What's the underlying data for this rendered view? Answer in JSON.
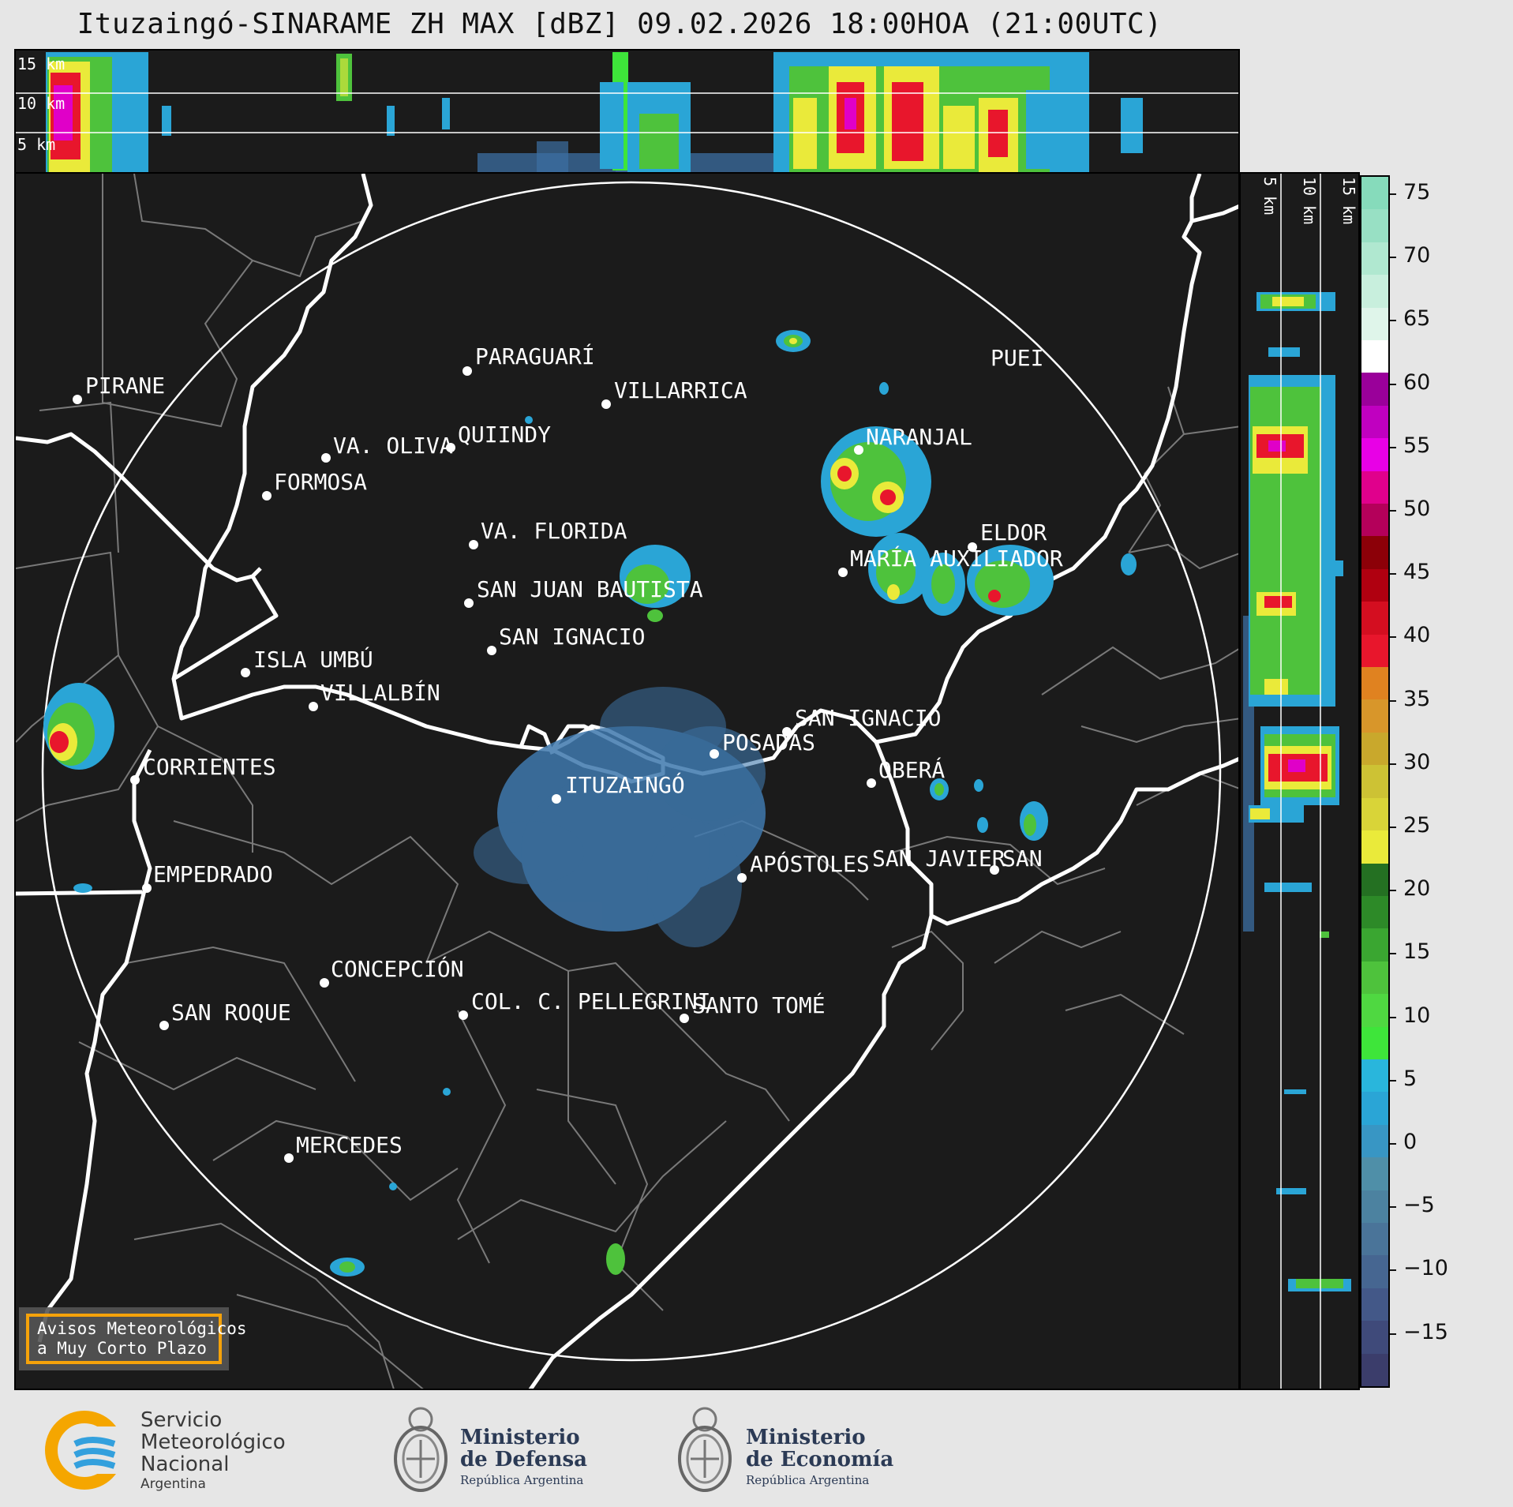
{
  "title": "Ituzaingó-SINARAME ZH MAX [dBZ] 09.02.2026 18:00HOA (21:00UTC)",
  "height_labels": [
    "15 km",
    "10 km",
    "5 km"
  ],
  "cities": [
    {
      "name": "PIRANE"
    },
    {
      "name": "PARAGUARÍ"
    },
    {
      "name": "VILLARRICA"
    },
    {
      "name": "VA. OLIVA"
    },
    {
      "name": "QUIINDY"
    },
    {
      "name": "FORMOSA"
    },
    {
      "name": "NARANJAL"
    },
    {
      "name": "VA. FLORIDA"
    },
    {
      "name": "ELDOR"
    },
    {
      "name": "MARÍA AUXILIADOR"
    },
    {
      "name": "SAN JUAN BAUTISTA"
    },
    {
      "name": "SAN IGNACIO"
    },
    {
      "name": "ISLA UMBÚ"
    },
    {
      "name": "VILLALBÍN"
    },
    {
      "name": "SAN IGNACIO"
    },
    {
      "name": "POSADAS"
    },
    {
      "name": "CORRIENTES"
    },
    {
      "name": "ITUZAINGÓ"
    },
    {
      "name": "OBERÁ"
    },
    {
      "name": "APÓSTOLES"
    },
    {
      "name": "SAN JAVIER"
    },
    {
      "name": "SAN"
    },
    {
      "name": "EMPEDRADO"
    },
    {
      "name": "CONCEPCIÓN"
    },
    {
      "name": "COL. C. PELLEGRINI"
    },
    {
      "name": "SANTO TOMÉ"
    },
    {
      "name": "SAN ROQUE"
    },
    {
      "name": "MERCEDES"
    },
    {
      "name": "PUEI"
    }
  ],
  "warning_box": {
    "line1": "Avisos Meteorológicos",
    "line2": "a Muy Corto Plazo"
  },
  "colorbar": {
    "unit": "dBZ",
    "ticks": [
      "75",
      "70",
      "65",
      "60",
      "55",
      "50",
      "45",
      "40",
      "35",
      "30",
      "25",
      "20",
      "15",
      "10",
      "5",
      "0",
      "−5",
      "−10",
      "−15"
    ],
    "colors": [
      "#3b3d6b",
      "#3f4a7a",
      "#435888",
      "#466691",
      "#4a7499",
      "#4c82a0",
      "#4f8fa8",
      "#3896c4",
      "#2aa5d6",
      "#29b6dc",
      "#3ee53a",
      "#4fd841",
      "#4ec23c",
      "#3aa631",
      "#2d8a28",
      "#247022",
      "#eaea3a",
      "#d9d438",
      "#cdc234",
      "#c9a82c",
      "#d8962a",
      "#e08220",
      "#e8162c",
      "#d40e20",
      "#b00010",
      "#8c0008",
      "#b4005a",
      "#e0008c",
      "#e800e6",
      "#c000c0",
      "#9a009a",
      "#ffffff",
      "#dff5ea",
      "#c8efdd",
      "#b0e8d0",
      "#98e0c4",
      "#86dbbb"
    ]
  },
  "footer": {
    "smn": {
      "line1": "Servicio",
      "line2": "Meteorológico",
      "line3": "Nacional",
      "line4": "Argentina"
    },
    "defensa": {
      "line1": "Ministerio",
      "line2": "de Defensa",
      "line3": "República Argentina"
    },
    "economia": {
      "line1": "Ministerio",
      "line2": "de Economía",
      "line3": "República Argentina"
    }
  },
  "colors": {
    "background": "#1b1b1b",
    "river": "#ffffff",
    "border": "#8a8a8a",
    "warning_box": "#f5a20a"
  }
}
